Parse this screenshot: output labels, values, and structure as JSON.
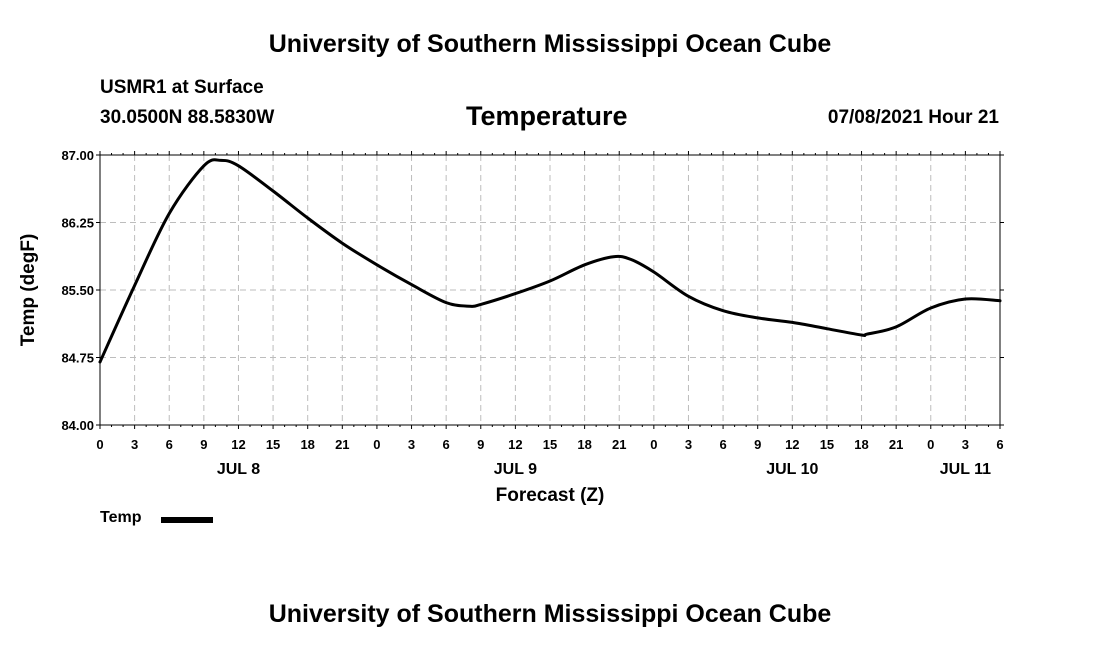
{
  "page": {
    "header_title": "University of Southern Mississippi Ocean Cube",
    "footer_title": "University of Southern Mississippi Ocean Cube",
    "station": "USMR1 at Surface",
    "coordinates": "30.0500N  88.5830W",
    "variable": "Temperature",
    "datetime": "07/08/2021 Hour 21"
  },
  "chart_data": {
    "type": "line",
    "title": "Temperature",
    "xlabel": "Forecast (Z)",
    "ylabel": "Temp (degF)",
    "ylim": [
      84.0,
      87.0
    ],
    "yticks": [
      84.0,
      84.75,
      85.5,
      86.25,
      87.0
    ],
    "ytick_labels": [
      "84.00",
      "84.75",
      "85.50",
      "86.25",
      "87.00"
    ],
    "xlim": [
      0,
      78
    ],
    "x_unit": "hours from 00Z JUL 8",
    "xtick_labels": [
      "0",
      "3",
      "6",
      "9",
      "12",
      "15",
      "18",
      "21",
      "0",
      "3",
      "6",
      "9",
      "12",
      "15",
      "18",
      "21",
      "0",
      "3",
      "6",
      "9",
      "12",
      "15",
      "18",
      "21",
      "0",
      "3",
      "6"
    ],
    "day_labels": [
      {
        "text": "JUL 8",
        "x": 12
      },
      {
        "text": "JUL 9",
        "x": 36
      },
      {
        "text": "JUL 10",
        "x": 60
      },
      {
        "text": "JUL 11",
        "x": 75
      }
    ],
    "grid": true,
    "series": [
      {
        "name": "Temp",
        "color": "#000000",
        "x": [
          0,
          3,
          6,
          9,
          10.5,
          12,
          15,
          18,
          21,
          24,
          27,
          30,
          32,
          33,
          36,
          39,
          42,
          44.5,
          46,
          48,
          51,
          54,
          57,
          60,
          63,
          66,
          66.5,
          69,
          72,
          75,
          78
        ],
        "values": [
          84.7,
          85.55,
          86.35,
          86.88,
          86.94,
          86.88,
          86.6,
          86.3,
          86.02,
          85.78,
          85.56,
          85.36,
          85.32,
          85.34,
          85.46,
          85.6,
          85.78,
          85.87,
          85.84,
          85.7,
          85.43,
          85.27,
          85.19,
          85.14,
          85.07,
          85.0,
          85.01,
          85.09,
          85.3,
          85.4,
          85.38
        ]
      }
    ]
  },
  "legend": {
    "label": "Temp"
  }
}
